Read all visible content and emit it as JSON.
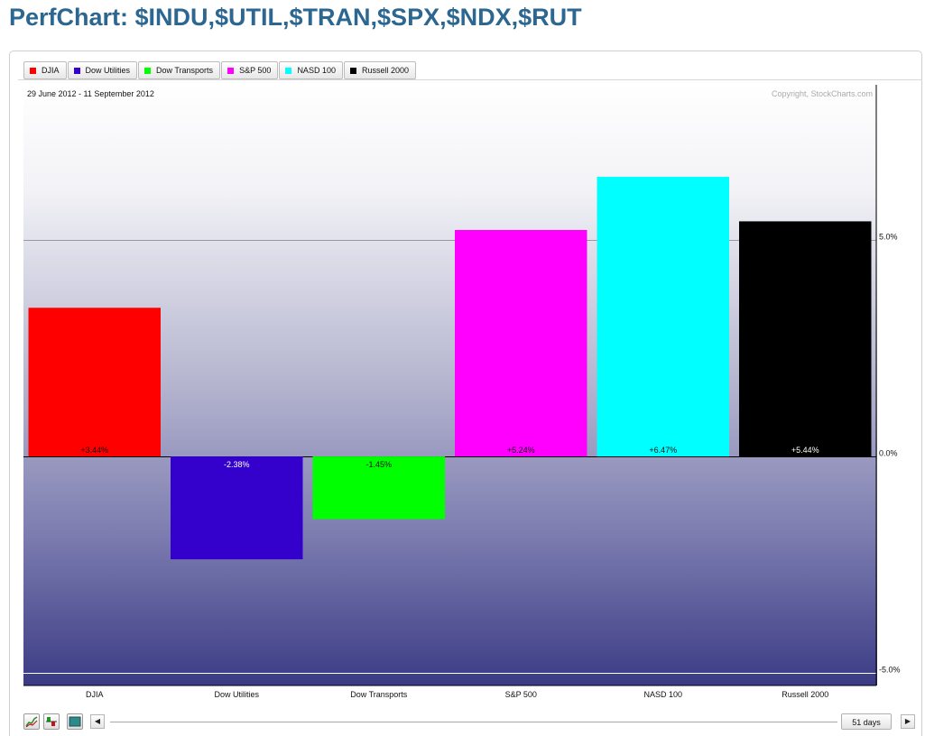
{
  "page": {
    "title": "PerfChart: $INDU,$UTIL,$TRAN,$SPX,$NDX,$RUT"
  },
  "legend": [
    {
      "label": "DJIA",
      "color": "#ff0000"
    },
    {
      "label": "Dow Utilities",
      "color": "#3300cc"
    },
    {
      "label": "Dow Transports",
      "color": "#00ff00"
    },
    {
      "label": "S&P 500",
      "color": "#ff00ff"
    },
    {
      "label": "NASD 100",
      "color": "#00ffff"
    },
    {
      "label": "Russell 2000",
      "color": "#000000"
    }
  ],
  "chart_data": {
    "type": "bar",
    "date_range": "29 June 2012 - 11 September 2012",
    "copyright": "Copyright, StockCharts.com",
    "categories": [
      "DJIA",
      "Dow Utilities",
      "Dow Transports",
      "S&P 500",
      "NASD 100",
      "Russell 2000"
    ],
    "values": [
      3.44,
      -2.38,
      -1.45,
      5.24,
      6.47,
      5.44
    ],
    "value_labels": [
      "+3.44%",
      "-2.38%",
      "-1.45%",
      "+5.24%",
      "+6.47%",
      "+5.44%"
    ],
    "colors": [
      "#ff0000",
      "#3300cc",
      "#00ff00",
      "#ff00ff",
      "#00ffff",
      "#000000"
    ],
    "label_colors": [
      "#111111",
      "#ffffff",
      "#111111",
      "#111111",
      "#111111",
      "#ffffff"
    ],
    "yticks": [
      5,
      0,
      -5
    ],
    "ytick_labels": [
      "5.0%",
      "0.0%",
      "-5.0%"
    ],
    "ylim": [
      -5.3,
      8.6
    ],
    "grid": true,
    "legend_position": "top-left"
  },
  "controls": {
    "days_label": "51 days",
    "left_arrow": "◀",
    "right_arrow": "▶"
  }
}
